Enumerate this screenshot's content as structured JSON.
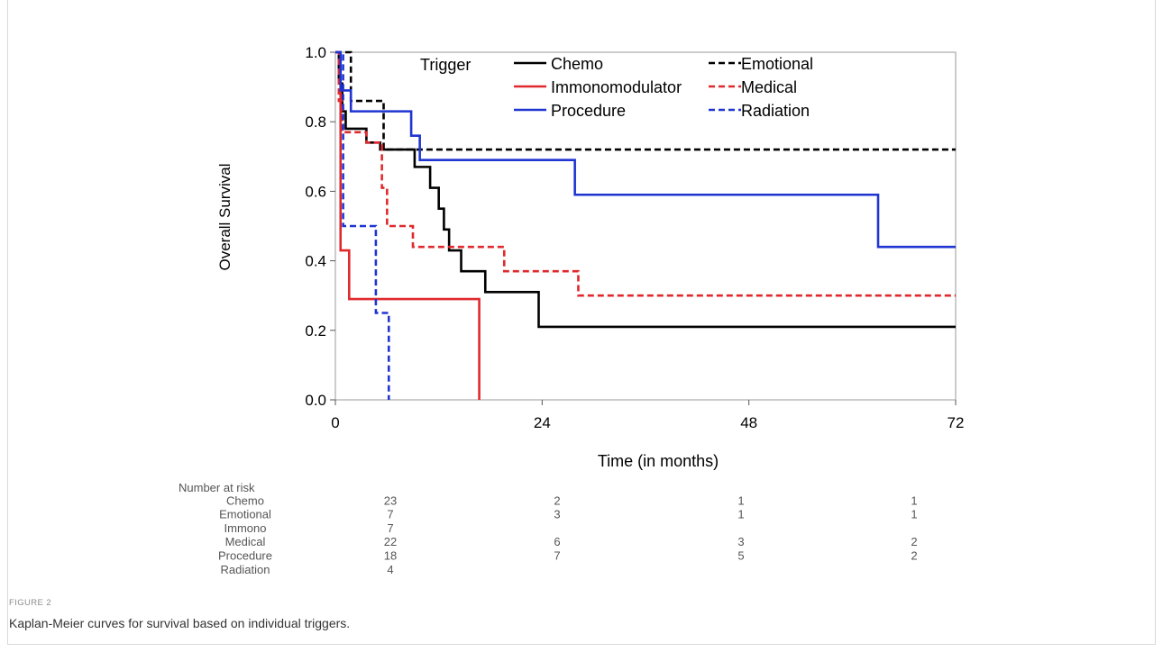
{
  "figure": {
    "label": "FIGURE 2",
    "caption": "Kaplan-Meier curves for survival based on individual triggers."
  },
  "chart_data": {
    "type": "line",
    "subtype": "kaplan-meier step",
    "xlabel": "Time (in months)",
    "ylabel": "Overall Survival",
    "xlim": [
      0,
      72
    ],
    "ylim": [
      0,
      1
    ],
    "xticks": [
      "0",
      "24",
      "48",
      "72"
    ],
    "yticks": [
      "0.0",
      "0.2",
      "0.4",
      "0.6",
      "0.8",
      "1.0"
    ],
    "grid": false,
    "legend": {
      "title": "Trigger",
      "position": "top-inside"
    },
    "series": [
      {
        "name": "Chemo",
        "color": "#000000",
        "style": "solid",
        "t": [
          0,
          0.4,
          0.8,
          1.2,
          2.2,
          3.6,
          5.2,
          7.0,
          9.2,
          11.0,
          12.0,
          12.6,
          13.2,
          14.6,
          17.4,
          23.6,
          72
        ],
        "s": [
          1.0,
          0.91,
          0.83,
          0.78,
          0.78,
          0.74,
          0.72,
          0.72,
          0.67,
          0.61,
          0.55,
          0.49,
          0.43,
          0.37,
          0.31,
          0.21,
          0.21
        ]
      },
      {
        "name": "Emotional",
        "color": "#000000",
        "style": "dashed",
        "t": [
          0,
          1.8,
          5.6,
          72
        ],
        "s": [
          1.0,
          0.86,
          0.72,
          0.72
        ]
      },
      {
        "name": "Immonomodulator",
        "color": "#e0292d",
        "style": "solid",
        "t": [
          0,
          0.6,
          1.6,
          16.7
        ],
        "s": [
          1.0,
          0.43,
          0.29,
          0.0
        ]
      },
      {
        "name": "Medical",
        "color": "#e0292d",
        "style": "dashed",
        "t": [
          0,
          0.4,
          0.8,
          3.6,
          5.4,
          6.0,
          9.0,
          19.6,
          28.2,
          72
        ],
        "s": [
          1.0,
          0.86,
          0.77,
          0.74,
          0.61,
          0.5,
          0.44,
          0.37,
          0.3,
          0.3
        ]
      },
      {
        "name": "Procedure",
        "color": "#1f35d1",
        "style": "solid",
        "t": [
          0,
          0.6,
          1.8,
          8.8,
          9.8,
          27.8,
          63.0,
          72
        ],
        "s": [
          1.0,
          0.89,
          0.83,
          0.76,
          0.69,
          0.59,
          0.44,
          0.44
        ]
      },
      {
        "name": "Radiation",
        "color": "#1f35d1",
        "style": "dashed",
        "t": [
          0,
          0.9,
          4.7,
          6.2
        ],
        "s": [
          1.0,
          0.5,
          0.25,
          0.0
        ]
      }
    ],
    "risk_table": {
      "title": "Number at risk",
      "times": [
        0,
        24,
        48,
        72
      ],
      "rows": [
        {
          "label": "Chemo",
          "values": [
            "23",
            "2",
            "1",
            "1"
          ]
        },
        {
          "label": "Emotional",
          "values": [
            "7",
            "3",
            "1",
            "1"
          ]
        },
        {
          "label": "Immono",
          "values": [
            "7",
            "",
            "",
            ""
          ]
        },
        {
          "label": "Medical",
          "values": [
            "22",
            "6",
            "3",
            "2"
          ]
        },
        {
          "label": "Procedure",
          "values": [
            "18",
            "7",
            "5",
            "2"
          ]
        },
        {
          "label": "Radiation",
          "values": [
            "4",
            "",
            "",
            ""
          ]
        }
      ]
    }
  }
}
